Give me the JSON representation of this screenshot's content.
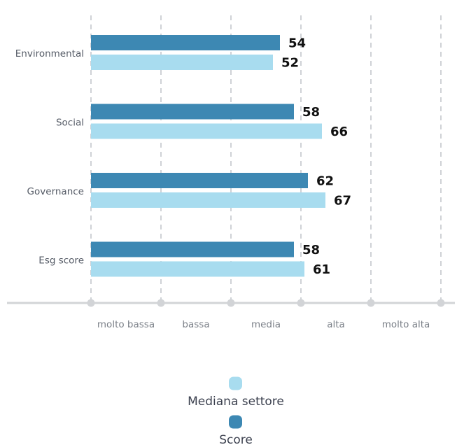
{
  "chart_data": {
    "type": "bar",
    "orientation": "horizontal",
    "categories": [
      "Environmental",
      "Social",
      "Governance",
      "Esg score"
    ],
    "series": [
      {
        "name": "Score",
        "values": [
          54,
          58,
          62,
          58
        ],
        "color": "#3d88b3"
      },
      {
        "name": "Mediana settore",
        "values": [
          52,
          66,
          67,
          61
        ],
        "color": "#a8dcef"
      }
    ],
    "xlim": [
      0,
      100
    ],
    "x_ticks": [
      0,
      20,
      40,
      60,
      80,
      100
    ],
    "x_tick_labels": [
      "molto bassa",
      "bassa",
      "media",
      "alta",
      "molto alta"
    ],
    "grid": true,
    "legend": {
      "position": "bottom",
      "entries": [
        "Mediana settore",
        "Score"
      ]
    },
    "title": "",
    "xlabel": "",
    "ylabel": ""
  }
}
